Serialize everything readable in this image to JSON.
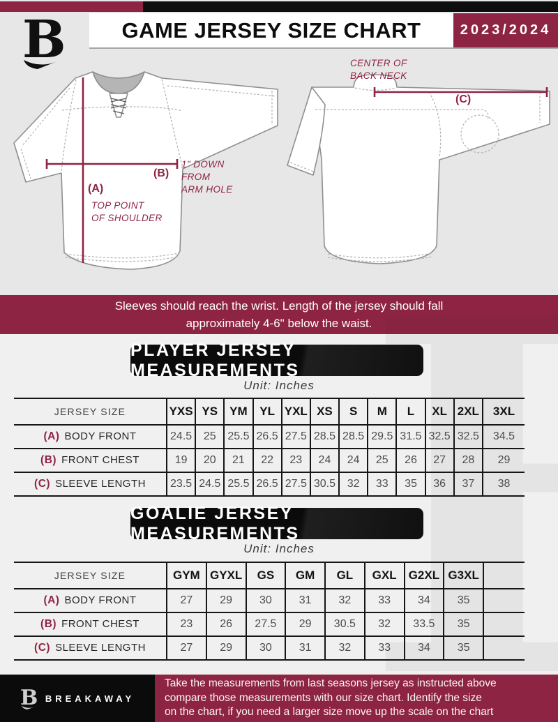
{
  "header": {
    "title": "GAME JERSEY SIZE CHART",
    "season": "2023/2024",
    "logo_letter": "B"
  },
  "colors": {
    "maroon": "#8e2443",
    "black": "#0d0d0d",
    "background": "#e8e7e7",
    "table_line": "#161616",
    "value_text": "#4d4d4d"
  },
  "diagram": {
    "front": {
      "a_key": "(A)",
      "a_note": "TOP POINT\nOF SHOULDER",
      "b_key": "(B)",
      "b_note": "1\" DOWN\nFROM\nARM HOLE"
    },
    "back": {
      "c_key": "(C)",
      "c_note": "CENTER OF\nBACK NECK"
    }
  },
  "notice": "Sleeves should reach the wrist. Length of the jersey should fall\napproximately 4-6\" below the waist.",
  "player_table": {
    "title": "PLAYER JERSEY MEASUREMENTS",
    "unit": "Unit: Inches",
    "corner_label": "JERSEY SIZE",
    "sizes": [
      "YXS",
      "YS",
      "YM",
      "YL",
      "YXL",
      "XS",
      "S",
      "M",
      "L",
      "XL",
      "2XL",
      "3XL"
    ],
    "trailing_empty": 0,
    "rows": [
      {
        "key": "(A)",
        "label": "BODY FRONT",
        "values": [
          "24.5",
          "25",
          "25.5",
          "26.5",
          "27.5",
          "28.5",
          "28.5",
          "29.5",
          "31.5",
          "32.5",
          "32.5",
          "34.5"
        ]
      },
      {
        "key": "(B)",
        "label": "FRONT CHEST",
        "values": [
          "19",
          "20",
          "21",
          "22",
          "23",
          "24",
          "24",
          "25",
          "26",
          "27",
          "28",
          "29"
        ]
      },
      {
        "key": "(C)",
        "label": "SLEEVE LENGTH",
        "values": [
          "23.5",
          "24.5",
          "25.5",
          "26.5",
          "27.5",
          "30.5",
          "32",
          "33",
          "35",
          "36",
          "37",
          "38"
        ]
      }
    ]
  },
  "goalie_table": {
    "title": "GOALIE JERSEY MEASUREMENTS",
    "unit": "Unit: Inches",
    "corner_label": "JERSEY SIZE",
    "sizes": [
      "GYM",
      "GYXL",
      "GS",
      "GM",
      "GL",
      "GXL",
      "G2XL",
      "G3XL"
    ],
    "trailing_empty": 1,
    "rows": [
      {
        "key": "(A)",
        "label": "BODY FRONT",
        "values": [
          "27",
          "29",
          "30",
          "31",
          "32",
          "33",
          "34",
          "35"
        ]
      },
      {
        "key": "(B)",
        "label": "FRONT CHEST",
        "values": [
          "23",
          "26",
          "27.5",
          "29",
          "30.5",
          "32",
          "33.5",
          "35"
        ]
      },
      {
        "key": "(C)",
        "label": "SLEEVE LENGTH",
        "values": [
          "27",
          "29",
          "30",
          "31",
          "32",
          "33",
          "34",
          "35"
        ]
      }
    ]
  },
  "footer": {
    "brand": "BREAKAWAY",
    "note": "Take the measurements from last seasons jersey as instructed above\ncompare those measurements  with our size chart. Identify the size\non the chart, if you need a larger size move up the scale on the chart"
  }
}
